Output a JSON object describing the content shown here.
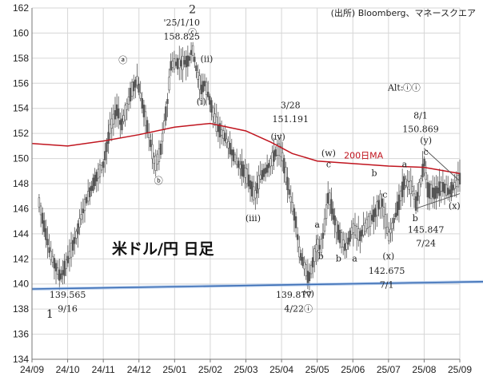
{
  "source_note": "(出所) Bloomberg、マネースクエア",
  "chart_data": {
    "type": "candlestick",
    "title": "米ドル/円 日足",
    "ylim": [
      134,
      162
    ],
    "yticks": [
      134,
      136,
      138,
      140,
      142,
      144,
      146,
      148,
      150,
      152,
      154,
      156,
      158,
      160,
      162
    ],
    "x_ticks": [
      "24/09",
      "24/10",
      "24/11",
      "24/12",
      "25/01",
      "25/02",
      "25/03",
      "25/04",
      "25/05",
      "25/06",
      "25/07",
      "25/08",
      "25/09"
    ],
    "grid": true,
    "price_path": [
      {
        "t": 0.2,
        "v": 146.5
      },
      {
        "t": 0.5,
        "v": 142.5
      },
      {
        "t": 0.8,
        "v": 140.5
      },
      {
        "t": 0.95,
        "v": 141.5
      },
      {
        "t": 1.2,
        "v": 143.5
      },
      {
        "t": 1.5,
        "v": 146.5
      },
      {
        "t": 1.8,
        "v": 148.5
      },
      {
        "t": 2.0,
        "v": 149.5
      },
      {
        "t": 2.2,
        "v": 152.5
      },
      {
        "t": 2.4,
        "v": 154.0
      },
      {
        "t": 2.5,
        "v": 152.5
      },
      {
        "t": 2.8,
        "v": 155.5
      },
      {
        "t": 2.95,
        "v": 156.2
      },
      {
        "t": 3.2,
        "v": 153.0
      },
      {
        "t": 3.45,
        "v": 149.5
      },
      {
        "t": 3.6,
        "v": 150.5
      },
      {
        "t": 3.8,
        "v": 154.5
      },
      {
        "t": 3.9,
        "v": 157.5
      },
      {
        "t": 4.2,
        "v": 157.6
      },
      {
        "t": 4.4,
        "v": 157.8
      },
      {
        "t": 4.5,
        "v": 158.8
      },
      {
        "t": 4.62,
        "v": 157.0
      },
      {
        "t": 4.75,
        "v": 155.5
      },
      {
        "t": 4.85,
        "v": 156.0
      },
      {
        "t": 5.2,
        "v": 152.5
      },
      {
        "t": 5.4,
        "v": 151.8
      },
      {
        "t": 5.6,
        "v": 150.5
      },
      {
        "t": 5.8,
        "v": 149.5
      },
      {
        "t": 6.0,
        "v": 148.8
      },
      {
        "t": 6.25,
        "v": 147.0
      },
      {
        "t": 6.4,
        "v": 148.5
      },
      {
        "t": 6.6,
        "v": 149.2
      },
      {
        "t": 6.9,
        "v": 150.8
      },
      {
        "t": 7.0,
        "v": 150.5
      },
      {
        "t": 7.2,
        "v": 147.5
      },
      {
        "t": 7.4,
        "v": 145.0
      },
      {
        "t": 7.5,
        "v": 142.5
      },
      {
        "t": 7.7,
        "v": 141.0
      },
      {
        "t": 7.75,
        "v": 140.2
      },
      {
        "t": 7.9,
        "v": 142.0
      },
      {
        "t": 8.0,
        "v": 143.2
      },
      {
        "t": 8.1,
        "v": 142.8
      },
      {
        "t": 8.2,
        "v": 144.5
      },
      {
        "t": 8.32,
        "v": 147.2
      },
      {
        "t": 8.45,
        "v": 145.5
      },
      {
        "t": 8.6,
        "v": 144.0
      },
      {
        "t": 8.8,
        "v": 142.8
      },
      {
        "t": 9.0,
        "v": 144.5
      },
      {
        "t": 9.2,
        "v": 143.8
      },
      {
        "t": 9.4,
        "v": 144.8
      },
      {
        "t": 9.6,
        "v": 145.5
      },
      {
        "t": 9.8,
        "v": 146.8
      },
      {
        "t": 10.0,
        "v": 143.7
      },
      {
        "t": 10.2,
        "v": 145.5
      },
      {
        "t": 10.45,
        "v": 148.2
      },
      {
        "t": 10.7,
        "v": 147.5
      },
      {
        "t": 10.75,
        "v": 146.2
      },
      {
        "t": 10.9,
        "v": 148.0
      },
      {
        "t": 11.0,
        "v": 149.8
      },
      {
        "t": 11.1,
        "v": 147.5
      },
      {
        "t": 11.3,
        "v": 147.2
      },
      {
        "t": 11.5,
        "v": 147.8
      },
      {
        "t": 11.7,
        "v": 147.3
      },
      {
        "t": 11.9,
        "v": 148.0
      },
      {
        "t": 12.0,
        "v": 148.4
      }
    ],
    "ma_200": [
      {
        "t": 0.0,
        "v": 151.2
      },
      {
        "t": 1.0,
        "v": 151.0
      },
      {
        "t": 2.0,
        "v": 151.4
      },
      {
        "t": 3.0,
        "v": 151.9
      },
      {
        "t": 4.0,
        "v": 152.5
      },
      {
        "t": 5.0,
        "v": 152.8
      },
      {
        "t": 6.0,
        "v": 152.2
      },
      {
        "t": 6.7,
        "v": 151.3
      },
      {
        "t": 7.3,
        "v": 150.4
      },
      {
        "t": 8.0,
        "v": 149.8
      },
      {
        "t": 9.0,
        "v": 149.6
      },
      {
        "t": 10.0,
        "v": 149.4
      },
      {
        "t": 11.0,
        "v": 149.3
      },
      {
        "t": 12.0,
        "v": 148.8
      }
    ],
    "ma_label": "200日MA",
    "trendline": {
      "start": {
        "t": 0.0,
        "v": 139.6
      },
      "end": {
        "t": 13.0,
        "v": 140.2
      }
    },
    "annotations": [
      {
        "label": "1",
        "t": 0.5,
        "v": 137.3,
        "size": "big"
      },
      {
        "label": "139.565",
        "t": 1.0,
        "v": 138.9
      },
      {
        "label": "9/16",
        "t": 1.0,
        "v": 137.8
      },
      {
        "label": "'25/1/10",
        "t": 4.2,
        "v": 160.6
      },
      {
        "label": "158.825",
        "t": 4.2,
        "v": 159.5
      },
      {
        "label": "2",
        "t": 4.5,
        "v": 161.6,
        "size": "big"
      },
      {
        "label": "ⓒ",
        "t": 4.5,
        "v": 159.8
      },
      {
        "label": "ⓐ",
        "t": 2.55,
        "v": 157.6
      },
      {
        "label": "ⓑ",
        "t": 3.55,
        "v": 148.0
      },
      {
        "label": "(ii)",
        "t": 4.9,
        "v": 157.7
      },
      {
        "label": "(i)",
        "t": 4.75,
        "v": 154.3
      },
      {
        "label": "3/28",
        "t": 7.25,
        "v": 154.0
      },
      {
        "label": "151.191",
        "t": 7.25,
        "v": 152.9
      },
      {
        "label": "(iv)",
        "t": 6.9,
        "v": 151.5
      },
      {
        "label": "(iii)",
        "t": 6.2,
        "v": 145.0
      },
      {
        "label": "139.877",
        "t": 7.35,
        "v": 138.9
      },
      {
        "label": "4/22",
        "t": 7.35,
        "v": 137.8
      },
      {
        "label": "(v)",
        "t": 7.75,
        "v": 139.0
      },
      {
        "label": "ⓘ",
        "t": 7.75,
        "v": 137.8
      },
      {
        "label": "a",
        "t": 8.0,
        "v": 144.5
      },
      {
        "label": "b",
        "t": 8.1,
        "v": 142.0
      },
      {
        "label": "(w)",
        "t": 8.32,
        "v": 150.2
      },
      {
        "label": "c",
        "t": 8.32,
        "v": 149.3
      },
      {
        "label": "b",
        "t": 8.6,
        "v": 141.8
      },
      {
        "label": "a",
        "t": 9.05,
        "v": 141.8
      },
      {
        "label": "b",
        "t": 9.6,
        "v": 148.6
      },
      {
        "label": "c",
        "t": 9.9,
        "v": 146.9
      },
      {
        "label": "(x)",
        "t": 10.0,
        "v": 142.0
      },
      {
        "label": "142.675",
        "t": 9.95,
        "v": 140.8
      },
      {
        "label": "7/1",
        "t": 9.95,
        "v": 139.7
      },
      {
        "label": "a",
        "t": 10.45,
        "v": 149.3
      },
      {
        "label": "b",
        "t": 10.75,
        "v": 145.0
      },
      {
        "label": "8/1",
        "t": 10.9,
        "v": 153.2
      },
      {
        "label": "150.869",
        "t": 10.9,
        "v": 152.1
      },
      {
        "label": "(y)",
        "t": 11.05,
        "v": 151.2
      },
      {
        "label": "c",
        "t": 11.05,
        "v": 150.3
      },
      {
        "label": "145.847",
        "t": 11.05,
        "v": 144.1
      },
      {
        "label": "7/24",
        "t": 11.05,
        "v": 143.0
      },
      {
        "label": "(x)",
        "t": 11.85,
        "v": 146.0
      },
      {
        "label": "Alt:",
        "t": 10.2,
        "v": 155.4
      },
      {
        "label": "ⓘⓘ",
        "t": 10.65,
        "v": 155.4
      }
    ],
    "triangle": {
      "upper": [
        {
          "t": 11.0,
          "v": 150.8
        },
        {
          "t": 12.0,
          "v": 148.2
        }
      ],
      "lower": [
        {
          "t": 10.75,
          "v": 146.0
        },
        {
          "t": 12.0,
          "v": 147.2
        }
      ]
    }
  },
  "colors": {
    "candle": "#555555",
    "ma": "#c0141e",
    "trendline": "#3a6db5",
    "grid": "#d6d6d6",
    "axis": "#777777"
  }
}
